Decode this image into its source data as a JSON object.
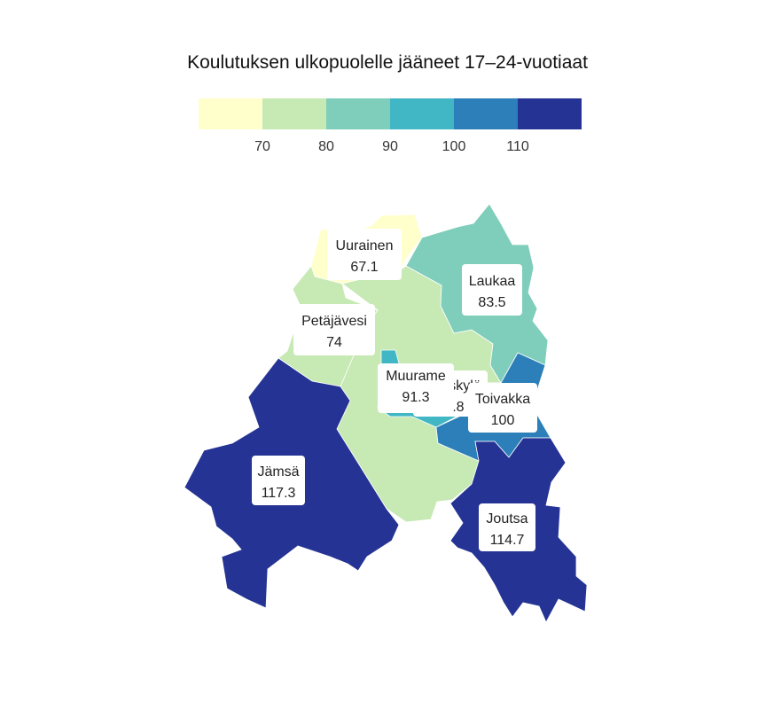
{
  "title": "Koulutuksen ulkopuolelle jääneet 17–24-vuotiaat",
  "legend": {
    "colors": [
      "#ffffcc",
      "#c7e9b4",
      "#7fcdbb",
      "#41b6c4",
      "#2c7fb8",
      "#253494"
    ],
    "ticks": [
      "70",
      "80",
      "90",
      "100",
      "110"
    ],
    "breaks": [
      70,
      80,
      90,
      100,
      110
    ]
  },
  "regions": [
    {
      "id": "uurainen",
      "name": "Uurainen",
      "value_text": "67.1",
      "value": 67.1
    },
    {
      "id": "petajavesi",
      "name": "Petäjävesi",
      "value_text": "74",
      "value": 74
    },
    {
      "id": "jyvaskyla",
      "name": "Jyväskylä",
      "value_text": "78.8",
      "value": 78.8
    },
    {
      "id": "laukaa",
      "name": "Laukaa",
      "value_text": "83.5",
      "value": 83.5
    },
    {
      "id": "muurame",
      "name": "Muurame",
      "value_text": "91.3",
      "value": 91.3
    },
    {
      "id": "toivakka",
      "name": "Toivakka",
      "value_text": "100",
      "value": 100
    },
    {
      "id": "jamsa",
      "name": "Jämsä",
      "value_text": "117.3",
      "value": 117.3
    },
    {
      "id": "joutsa",
      "name": "Joutsa",
      "value_text": "114.7",
      "value": 114.7
    }
  ]
}
